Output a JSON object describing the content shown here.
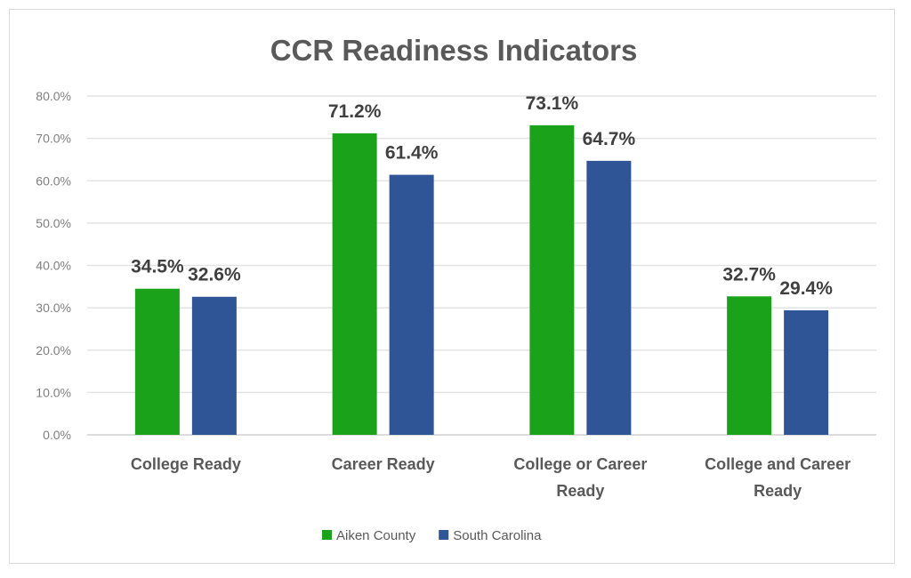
{
  "chart_data": {
    "type": "bar",
    "title": "CCR Readiness Indicators",
    "xlabel": "",
    "ylabel": "",
    "ylim": [
      0,
      80
    ],
    "yticks": [
      "0.0%",
      "10.0%",
      "20.0%",
      "30.0%",
      "40.0%",
      "50.0%",
      "60.0%",
      "70.0%",
      "80.0%"
    ],
    "grid": true,
    "legend_position": "bottom",
    "categories": [
      [
        "College Ready"
      ],
      [
        "Career Ready"
      ],
      [
        "College or Career",
        "Ready"
      ],
      [
        "College and Career",
        "Ready"
      ]
    ],
    "series": [
      {
        "name": "Aiken County",
        "color": "#1aa31a",
        "values": [
          34.5,
          71.2,
          73.1,
          32.7
        ],
        "labels": [
          "34.5%",
          "71.2%",
          "73.1%",
          "32.7%"
        ]
      },
      {
        "name": "South Carolina",
        "color": "#2f5597",
        "values": [
          32.6,
          61.4,
          64.7,
          29.4
        ],
        "labels": [
          "32.6%",
          "61.4%",
          "64.7%",
          "29.4%"
        ]
      }
    ]
  }
}
